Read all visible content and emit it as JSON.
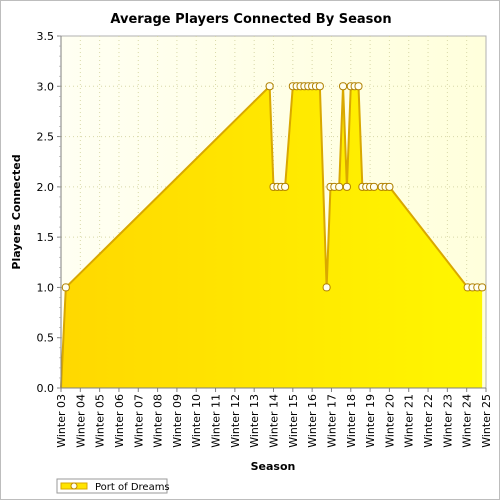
{
  "chart_data": {
    "type": "area",
    "title": "Average Players Connected By Season",
    "xlabel": "Season",
    "ylabel": "Players Connected",
    "categories": [
      "Winter 03",
      "Winter 04",
      "Winter 05",
      "Winter 06",
      "Winter 07",
      "Winter 08",
      "Winter 09",
      "Winter 10",
      "Winter 11",
      "Winter 12",
      "Winter 13",
      "Winter 14",
      "Winter 15",
      "Winter 16",
      "Winter 17",
      "Winter 18",
      "Winter 19",
      "Winter 20",
      "Winter 21",
      "Winter 22",
      "Winter 23",
      "Winter 24",
      "Winter 25"
    ],
    "ylim": [
      0,
      3.5
    ],
    "yticks": [
      "0.0",
      "0.5",
      "1.0",
      "1.5",
      "2.0",
      "2.5",
      "3.0",
      "3.5"
    ],
    "grid": true,
    "legend_position": "bottom-left",
    "colors": {
      "fill": "#ffe400",
      "fill_light": "#fff200",
      "line": "#d9a800",
      "plot_bg": "#ffffe0",
      "marker_fill": "#fffff0"
    },
    "series": [
      {
        "name": "Port of Dreams",
        "points": [
          {
            "x": 0.0,
            "y": 0
          },
          {
            "x": 0.25,
            "y": 1
          },
          {
            "x": 10.8,
            "y": 3
          },
          {
            "x": 11.0,
            "y": 2
          },
          {
            "x": 11.2,
            "y": 2
          },
          {
            "x": 11.4,
            "y": 2
          },
          {
            "x": 11.6,
            "y": 2
          },
          {
            "x": 12.0,
            "y": 3
          },
          {
            "x": 12.2,
            "y": 3
          },
          {
            "x": 12.4,
            "y": 3
          },
          {
            "x": 12.6,
            "y": 3
          },
          {
            "x": 12.8,
            "y": 3
          },
          {
            "x": 13.0,
            "y": 3
          },
          {
            "x": 13.2,
            "y": 3
          },
          {
            "x": 13.4,
            "y": 3
          },
          {
            "x": 13.75,
            "y": 1
          },
          {
            "x": 13.95,
            "y": 2
          },
          {
            "x": 14.15,
            "y": 2
          },
          {
            "x": 14.4,
            "y": 2
          },
          {
            "x": 14.6,
            "y": 3
          },
          {
            "x": 14.8,
            "y": 2
          },
          {
            "x": 15.0,
            "y": 3
          },
          {
            "x": 15.2,
            "y": 3
          },
          {
            "x": 15.4,
            "y": 3
          },
          {
            "x": 15.6,
            "y": 2
          },
          {
            "x": 15.8,
            "y": 2
          },
          {
            "x": 16.0,
            "y": 2
          },
          {
            "x": 16.2,
            "y": 2
          },
          {
            "x": 16.6,
            "y": 2
          },
          {
            "x": 16.8,
            "y": 2
          },
          {
            "x": 17.0,
            "y": 2
          },
          {
            "x": 21.05,
            "y": 1
          },
          {
            "x": 21.3,
            "y": 1
          },
          {
            "x": 21.55,
            "y": 1
          },
          {
            "x": 21.8,
            "y": 1
          }
        ]
      }
    ]
  }
}
